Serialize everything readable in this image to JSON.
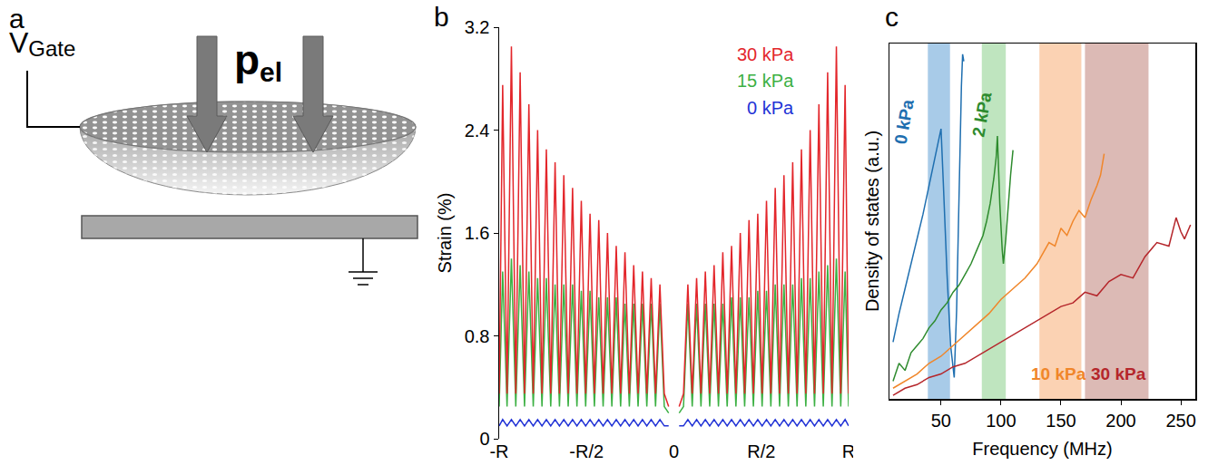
{
  "diagram": {
    "panel": "a",
    "gate_label": {
      "main": "V",
      "sub": "Gate"
    },
    "pressure_label": {
      "main": "p",
      "sub": "el"
    }
  },
  "chart_data": [
    {
      "panel": "b",
      "type": "line",
      "y_label": "Strain (%)",
      "xlim": [
        -1,
        1
      ],
      "xticks": [
        {
          "value": -1,
          "label": "-R"
        },
        {
          "value": -0.5,
          "label": "-R/2"
        },
        0,
        {
          "value": 0.5,
          "label": "R/2"
        },
        {
          "value": 1,
          "label": "R"
        }
      ],
      "ylim": [
        0,
        3.2
      ],
      "yticks": [
        0,
        0.8,
        1.6,
        2.4,
        3.2
      ],
      "grid": false,
      "x": [
        -1,
        -0.98,
        -0.955,
        -0.93,
        -0.905,
        -0.88,
        -0.855,
        -0.83,
        -0.805,
        -0.78,
        -0.755,
        -0.73,
        -0.705,
        -0.68,
        -0.655,
        -0.63,
        -0.605,
        -0.58,
        -0.555,
        -0.53,
        -0.505,
        -0.48,
        -0.455,
        -0.43,
        -0.405,
        -0.38,
        -0.355,
        -0.33,
        -0.305,
        -0.28,
        -0.255,
        -0.23,
        -0.205,
        -0.18,
        -0.155,
        -0.13,
        -0.105,
        -0.08,
        -0.055,
        -0.03,
        0,
        0.03,
        0.055,
        0.08,
        0.105,
        0.13,
        0.155,
        0.18,
        0.205,
        0.23,
        0.255,
        0.28,
        0.305,
        0.33,
        0.355,
        0.38,
        0.405,
        0.43,
        0.455,
        0.48,
        0.505,
        0.53,
        0.555,
        0.58,
        0.605,
        0.63,
        0.655,
        0.68,
        0.705,
        0.73,
        0.755,
        0.78,
        0.805,
        0.83,
        0.855,
        0.88,
        0.905,
        0.93,
        0.955,
        0.98,
        1
      ],
      "series": [
        {
          "name": "30 kPa",
          "color": "#e3262b",
          "values": [
            0.35,
            2.75,
            0.35,
            3.05,
            0.35,
            2.85,
            0.35,
            2.6,
            0.35,
            2.4,
            0.35,
            2.25,
            0.35,
            2.15,
            0.35,
            2.05,
            0.35,
            1.95,
            0.35,
            1.85,
            0.35,
            1.75,
            0.35,
            1.7,
            0.35,
            1.6,
            0.35,
            1.5,
            0.35,
            1.45,
            0.35,
            1.35,
            0.35,
            1.3,
            0.35,
            1.25,
            0.35,
            1.2,
            0.35,
            0.25,
            null,
            0.25,
            0.35,
            1.2,
            0.35,
            1.25,
            0.35,
            1.3,
            0.35,
            1.35,
            0.35,
            1.45,
            0.35,
            1.5,
            0.35,
            1.6,
            0.35,
            1.7,
            0.35,
            1.75,
            0.35,
            1.85,
            0.35,
            1.95,
            0.35,
            2.05,
            0.35,
            2.15,
            0.35,
            2.25,
            0.35,
            2.4,
            0.35,
            2.6,
            0.35,
            2.85,
            0.35,
            3.05,
            0.35,
            2.75,
            0.35
          ]
        },
        {
          "name": "15 kPa",
          "color": "#3cb043",
          "values": [
            0.25,
            1.3,
            0.25,
            1.4,
            0.25,
            1.35,
            0.25,
            1.3,
            0.25,
            1.25,
            0.25,
            1.25,
            0.25,
            1.2,
            0.25,
            1.2,
            0.25,
            1.2,
            0.25,
            1.15,
            0.25,
            1.15,
            0.25,
            1.1,
            0.25,
            1.1,
            0.25,
            1.1,
            0.25,
            1.05,
            0.25,
            1.05,
            0.25,
            1.05,
            0.25,
            1.05,
            0.25,
            1.05,
            0.25,
            0.2,
            null,
            0.2,
            0.25,
            1.05,
            0.25,
            1.05,
            0.25,
            1.05,
            0.25,
            1.05,
            0.25,
            1.05,
            0.25,
            1.1,
            0.25,
            1.1,
            0.25,
            1.1,
            0.25,
            1.15,
            0.25,
            1.15,
            0.25,
            1.2,
            0.25,
            1.2,
            0.25,
            1.2,
            0.25,
            1.25,
            0.25,
            1.25,
            0.25,
            1.3,
            0.25,
            1.35,
            0.25,
            1.4,
            0.25,
            1.3,
            0.25
          ]
        },
        {
          "name": "0 kPa",
          "color": "#2233d6",
          "values": [
            0.1,
            0.15,
            0.1,
            0.15,
            0.1,
            0.15,
            0.1,
            0.15,
            0.1,
            0.15,
            0.1,
            0.15,
            0.1,
            0.15,
            0.1,
            0.15,
            0.1,
            0.15,
            0.1,
            0.15,
            0.1,
            0.15,
            0.1,
            0.15,
            0.1,
            0.15,
            0.1,
            0.15,
            0.1,
            0.15,
            0.1,
            0.15,
            0.1,
            0.15,
            0.1,
            0.15,
            0.1,
            0.15,
            0.1,
            0.1,
            null,
            0.1,
            0.1,
            0.15,
            0.1,
            0.15,
            0.1,
            0.15,
            0.1,
            0.15,
            0.1,
            0.15,
            0.1,
            0.15,
            0.1,
            0.15,
            0.1,
            0.15,
            0.1,
            0.15,
            0.1,
            0.15,
            0.1,
            0.15,
            0.1,
            0.15,
            0.1,
            0.15,
            0.1,
            0.15,
            0.1,
            0.15,
            0.1,
            0.15,
            0.1,
            0.15,
            0.1,
            0.15,
            0.1,
            0.15,
            0.1
          ]
        }
      ]
    },
    {
      "panel": "c",
      "type": "line",
      "x_label": "Frequency (MHz)",
      "y_label": "Density of states (a.u.)",
      "xlim": [
        7,
        262
      ],
      "xticks": [
        50,
        100,
        150,
        200,
        250
      ],
      "ylim": [
        0,
        1
      ],
      "tick_labels": "x",
      "grid": false,
      "bands": [
        {
          "from": 39,
          "to": 57.5,
          "color": "#a8cbe8"
        },
        {
          "from": 84,
          "to": 104,
          "color": "#bfe5bf"
        },
        {
          "from": 132,
          "to": 167,
          "color": "#fbd2b3"
        },
        {
          "from": 170,
          "to": 223,
          "color": "#dcbab5"
        }
      ],
      "series": [
        {
          "name": "0 kPa",
          "color": "#1f6fb0",
          "x": [
            10,
            15,
            20,
            25,
            30,
            35,
            40,
            45,
            48,
            50,
            52,
            55,
            58,
            61,
            63,
            65,
            67,
            68,
            69
          ],
          "values": [
            0.16,
            0.24,
            0.31,
            0.38,
            0.45,
            0.52,
            0.6,
            0.68,
            0.73,
            0.76,
            0.6,
            0.35,
            0.15,
            0.06,
            0.25,
            0.6,
            0.88,
            0.97,
            0.95
          ]
        },
        {
          "name": "2 kPa",
          "color": "#2e8b2e",
          "x": [
            10,
            15,
            20,
            25,
            30,
            35,
            40,
            45,
            50,
            55,
            60,
            65,
            70,
            75,
            80,
            85,
            88,
            91,
            94,
            96,
            97,
            99,
            101,
            102,
            104,
            106,
            108,
            110
          ],
          "values": [
            0.05,
            0.1,
            0.08,
            0.13,
            0.15,
            0.17,
            0.2,
            0.22,
            0.25,
            0.27,
            0.3,
            0.32,
            0.35,
            0.38,
            0.42,
            0.46,
            0.5,
            0.55,
            0.62,
            0.68,
            0.74,
            0.55,
            0.42,
            0.38,
            0.45,
            0.55,
            0.63,
            0.7
          ]
        },
        {
          "name": "10 kPa",
          "color": "#f0862a",
          "x": [
            10,
            20,
            30,
            40,
            50,
            60,
            70,
            80,
            90,
            100,
            110,
            120,
            130,
            135,
            140,
            145,
            150,
            155,
            160,
            165,
            170,
            175,
            180,
            183,
            186
          ],
          "values": [
            0.03,
            0.05,
            0.07,
            0.1,
            0.12,
            0.15,
            0.18,
            0.21,
            0.24,
            0.28,
            0.31,
            0.34,
            0.38,
            0.41,
            0.44,
            0.43,
            0.48,
            0.46,
            0.5,
            0.53,
            0.51,
            0.56,
            0.6,
            0.63,
            0.69
          ]
        },
        {
          "name": "30 kPa",
          "color": "#b5262b",
          "x": [
            10,
            20,
            30,
            40,
            50,
            60,
            70,
            80,
            90,
            100,
            110,
            120,
            130,
            140,
            150,
            160,
            170,
            180,
            190,
            200,
            210,
            220,
            230,
            240,
            246,
            250,
            253,
            258
          ],
          "values": [
            0.01,
            0.03,
            0.04,
            0.06,
            0.07,
            0.09,
            0.1,
            0.12,
            0.14,
            0.16,
            0.18,
            0.2,
            0.22,
            0.24,
            0.26,
            0.27,
            0.3,
            0.29,
            0.33,
            0.35,
            0.34,
            0.4,
            0.44,
            0.43,
            0.51,
            0.47,
            0.45,
            0.49
          ]
        }
      ]
    }
  ]
}
